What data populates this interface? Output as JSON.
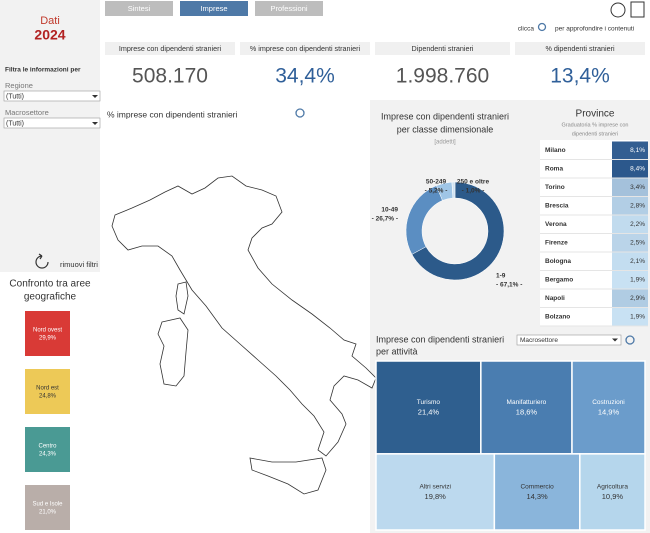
{
  "sidebar": {
    "title": "Dati",
    "year": "2024",
    "filter_heading": "Filtra le informazioni per",
    "filters": [
      {
        "label": "Regione",
        "value": "(Tutti)"
      },
      {
        "label": "Macrosettore",
        "value": "(Tutti)"
      }
    ],
    "reset": "rimuovi filtri",
    "compare_title": [
      "Confronto tra aree",
      "geografiche"
    ],
    "areas": [
      {
        "name": "Nord ovest",
        "label": "29,9%",
        "color": "#d93a36"
      },
      {
        "name": "Nord est",
        "label": "24,8%",
        "color": "#edc957"
      },
      {
        "name": "Centro",
        "label": "24,3%",
        "color": "#4a9a94"
      },
      {
        "name": "Sud e Isole",
        "label": "21,0%",
        "color": "#b9aea9"
      }
    ]
  },
  "tabs": [
    "Sintesi",
    "Imprese",
    "Professioni"
  ],
  "hint": {
    "before": "clicca",
    "after": "per approfondire i contenuti"
  },
  "kpis": [
    {
      "label": "Imprese con dipendenti stranieri",
      "value": "508.170",
      "color": "#555555"
    },
    {
      "label": "% imprese con dipendenti stranieri",
      "value": "34,4%",
      "color": "#2f5f99"
    },
    {
      "label": "Dipendenti stranieri",
      "value": "1.998.760",
      "color": "#555555"
    },
    {
      "label": "% dipendenti stranieri",
      "value": "13,4%",
      "color": "#2f5f99"
    }
  ],
  "map_title": "% imprese con dipendenti stranieri",
  "donut": {
    "title": [
      "Imprese con dipendenti stranieri",
      "per classe dimensionale"
    ],
    "subtitle": "[addetti]",
    "segments": [
      {
        "name": "1-9",
        "value": 67.1,
        "label": "- 67,1% -",
        "color": "#2c5a8a"
      },
      {
        "name": "10-49",
        "value": 26.7,
        "label": "- 26,7% -",
        "color": "#5b8ec2"
      },
      {
        "name": "50-249",
        "value": 5.2,
        "label": "- 5,2% -",
        "color": "#9fc5e6"
      },
      {
        "name": "250 e oltre",
        "value": 1.0,
        "label": "- 1,0% -",
        "color": "#cfe2f2"
      }
    ]
  },
  "provinces": {
    "title": "Province",
    "subtitle": [
      "Graduatoria % imprese con",
      "dipendenti stranieri"
    ],
    "rows": [
      {
        "name": "Milano",
        "value": 8.1,
        "label": "8,1%"
      },
      {
        "name": "Roma",
        "value": 8.4,
        "label": "8,4%"
      },
      {
        "name": "Torino",
        "value": 3.4,
        "label": "3,4%"
      },
      {
        "name": "Brescia",
        "value": 2.8,
        "label": "2,8%"
      },
      {
        "name": "Verona",
        "value": 2.2,
        "label": "2,2%"
      },
      {
        "name": "Firenze",
        "value": 2.5,
        "label": "2,5%"
      },
      {
        "name": "Bologna",
        "value": 2.1,
        "label": "2,1%"
      },
      {
        "name": "Bergamo",
        "value": 1.9,
        "label": "1,9%"
      },
      {
        "name": "Napoli",
        "value": 2.9,
        "label": "2,9%"
      },
      {
        "name": "Bolzano",
        "value": 1.9,
        "label": "1,9%"
      }
    ]
  },
  "treemap": {
    "title": [
      "Imprese con dipendenti stranieri",
      "per attività"
    ],
    "dropdown": "Macrosettore",
    "cells": [
      {
        "name": "Turismo",
        "value": 21.4,
        "label": "21,4%",
        "color": "#2f5f8f"
      },
      {
        "name": "Manifatturiero",
        "value": 18.6,
        "label": "18,6%",
        "color": "#4a7db0"
      },
      {
        "name": "Costruzioni",
        "value": 14.9,
        "label": "14,9%",
        "color": "#6b9ccb"
      },
      {
        "name": "Altri servizi",
        "value": 19.8,
        "label": "19,8%",
        "color": "#bcd9ee"
      },
      {
        "name": "Commercio",
        "value": 14.3,
        "label": "14,3%",
        "color": "#8ab5db"
      },
      {
        "name": "Agricoltura",
        "value": 10.9,
        "label": "10,9%",
        "color": "#b5d6ec"
      }
    ]
  }
}
